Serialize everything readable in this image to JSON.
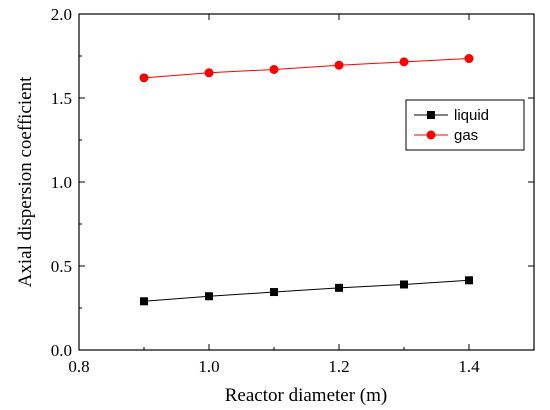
{
  "chart_data": {
    "type": "line",
    "xlabel": "Reactor diameter (m)",
    "ylabel": "Axial dispersion coefficient",
    "xlim": [
      0.8,
      1.5
    ],
    "ylim": [
      0.0,
      2.0
    ],
    "xticks": [
      "0.8",
      "1.0",
      "1.2",
      "1.4"
    ],
    "yticks": [
      "0.0",
      "0.5",
      "1.0",
      "1.5",
      "2.0"
    ],
    "x": [
      0.9,
      1.0,
      1.1,
      1.2,
      1.3,
      1.4
    ],
    "series": [
      {
        "name": "liquid",
        "color": "#000000",
        "marker": "square",
        "values": [
          0.29,
          0.32,
          0.345,
          0.37,
          0.39,
          0.415
        ]
      },
      {
        "name": "gas",
        "color": "#ff0000",
        "marker": "circle",
        "values": [
          1.62,
          1.65,
          1.67,
          1.695,
          1.715,
          1.735
        ]
      }
    ],
    "legend_position": "right",
    "grid": false
  }
}
